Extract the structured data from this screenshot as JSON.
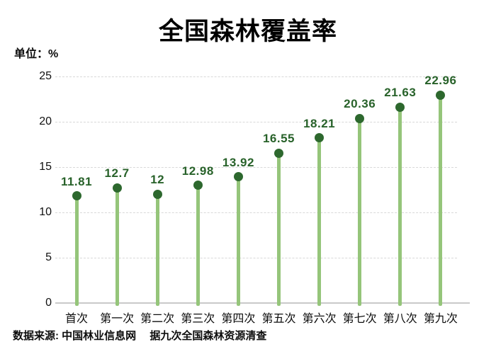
{
  "header": {
    "title": "全国森林覆盖率",
    "unit_label": "单位：%"
  },
  "footer": {
    "source_note": "数据来源: 中国林业信息网　 据九次全国森林资源清查"
  },
  "chart_data": {
    "type": "lollipop",
    "title": "全国森林覆盖率",
    "unit": "%",
    "categories": [
      "首次",
      "第一次",
      "第二次",
      "第三次",
      "第四次",
      "第五次",
      "第六次",
      "第七次",
      "第八次",
      "第九次"
    ],
    "values": [
      11.81,
      12.7,
      12,
      12.98,
      13.92,
      16.55,
      18.21,
      20.36,
      21.63,
      22.96
    ],
    "value_labels": [
      "11.81",
      "12.7",
      "12",
      "12.98",
      "13.92",
      "16.55",
      "18.21",
      "20.36",
      "21.63",
      "22.96"
    ],
    "ylim": [
      0,
      25
    ],
    "yticks": [
      0,
      5,
      10,
      15,
      20,
      25
    ],
    "grid": "horizontal-dashed",
    "legend": "none",
    "colors": {
      "stem": "#95c57a",
      "dot": "#2d682e",
      "value_label": "#28622a",
      "gridline": "#d8d8d8",
      "baseline": "#c9c9c9",
      "text": "#0d0d0d"
    }
  }
}
